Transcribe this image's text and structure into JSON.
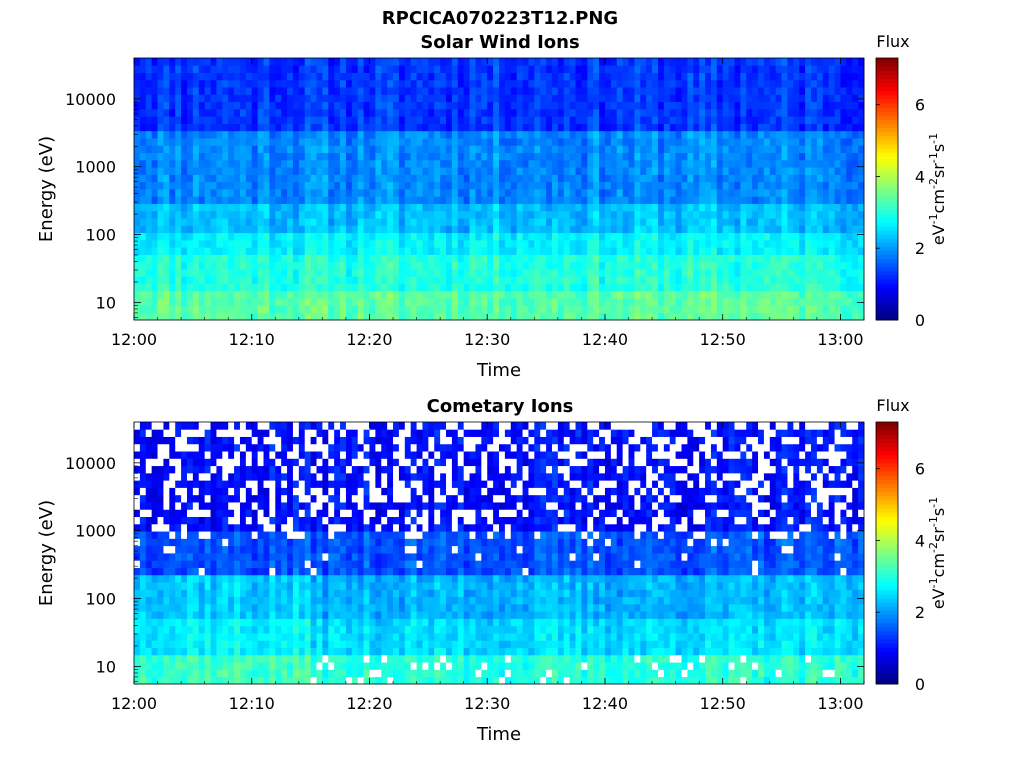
{
  "figure": {
    "title": "RPCICA070223T12.PNG"
  },
  "chart_data": [
    {
      "type": "heatmap",
      "title": "Solar Wind Ions",
      "xlabel": "Time",
      "ylabel": "Energy (eV)",
      "x_ticks": [
        "12:00",
        "12:10",
        "12:20",
        "12:30",
        "12:40",
        "12:50",
        "13:00"
      ],
      "x_range": [
        "12:00",
        "13:02"
      ],
      "y_scale": "log",
      "y_ticks": [
        10,
        100,
        1000,
        10000
      ],
      "y_range": [
        5.5,
        40000
      ],
      "colorbar": {
        "label": "Flux",
        "unit_label": "eV-1cm-2sr-1s-1",
        "ticks": [
          0,
          2,
          4,
          6
        ],
        "range": [
          0,
          7.3
        ],
        "colormap": "jet"
      },
      "description_levels": {
        "energy_bands_log_flux": [
          {
            "energy": "6-15",
            "log_flux": 3.4
          },
          {
            "energy": "15-45",
            "log_flux": 3.0
          },
          {
            "energy": "45-100",
            "log_flux": 2.7
          },
          {
            "energy": "100-300",
            "log_flux": 2.3
          },
          {
            "energy": "300-3000",
            "log_flux": 1.9
          },
          {
            "energy": "3000-40000",
            "log_flux": 1.3
          }
        ]
      }
    },
    {
      "type": "heatmap",
      "title": "Cometary Ions",
      "xlabel": "Time",
      "ylabel": "Energy (eV)",
      "x_ticks": [
        "12:00",
        "12:10",
        "12:20",
        "12:30",
        "12:40",
        "12:50",
        "13:00"
      ],
      "x_range": [
        "12:00",
        "13:02"
      ],
      "y_scale": "log",
      "y_ticks": [
        10,
        100,
        1000,
        10000
      ],
      "y_range": [
        5.5,
        40000
      ],
      "colorbar": {
        "label": "Flux",
        "unit_label": "eV-1cm-2sr-1s-1",
        "ticks": [
          0,
          2,
          4,
          6
        ],
        "range": [
          0,
          7.3
        ],
        "colormap": "jet"
      },
      "description_levels": {
        "energy_bands_log_flux": [
          {
            "energy": "6-15",
            "log_flux": 3.0
          },
          {
            "energy": "15-45",
            "log_flux": 2.5
          },
          {
            "energy": "45-200",
            "log_flux": 2.2
          },
          {
            "energy": "200-1000",
            "log_flux": 1.5
          },
          {
            "energy": "1000-40000",
            "log_flux": 1.0
          }
        ],
        "white_gaps": "frequent above 1000 eV (no data)"
      }
    }
  ]
}
